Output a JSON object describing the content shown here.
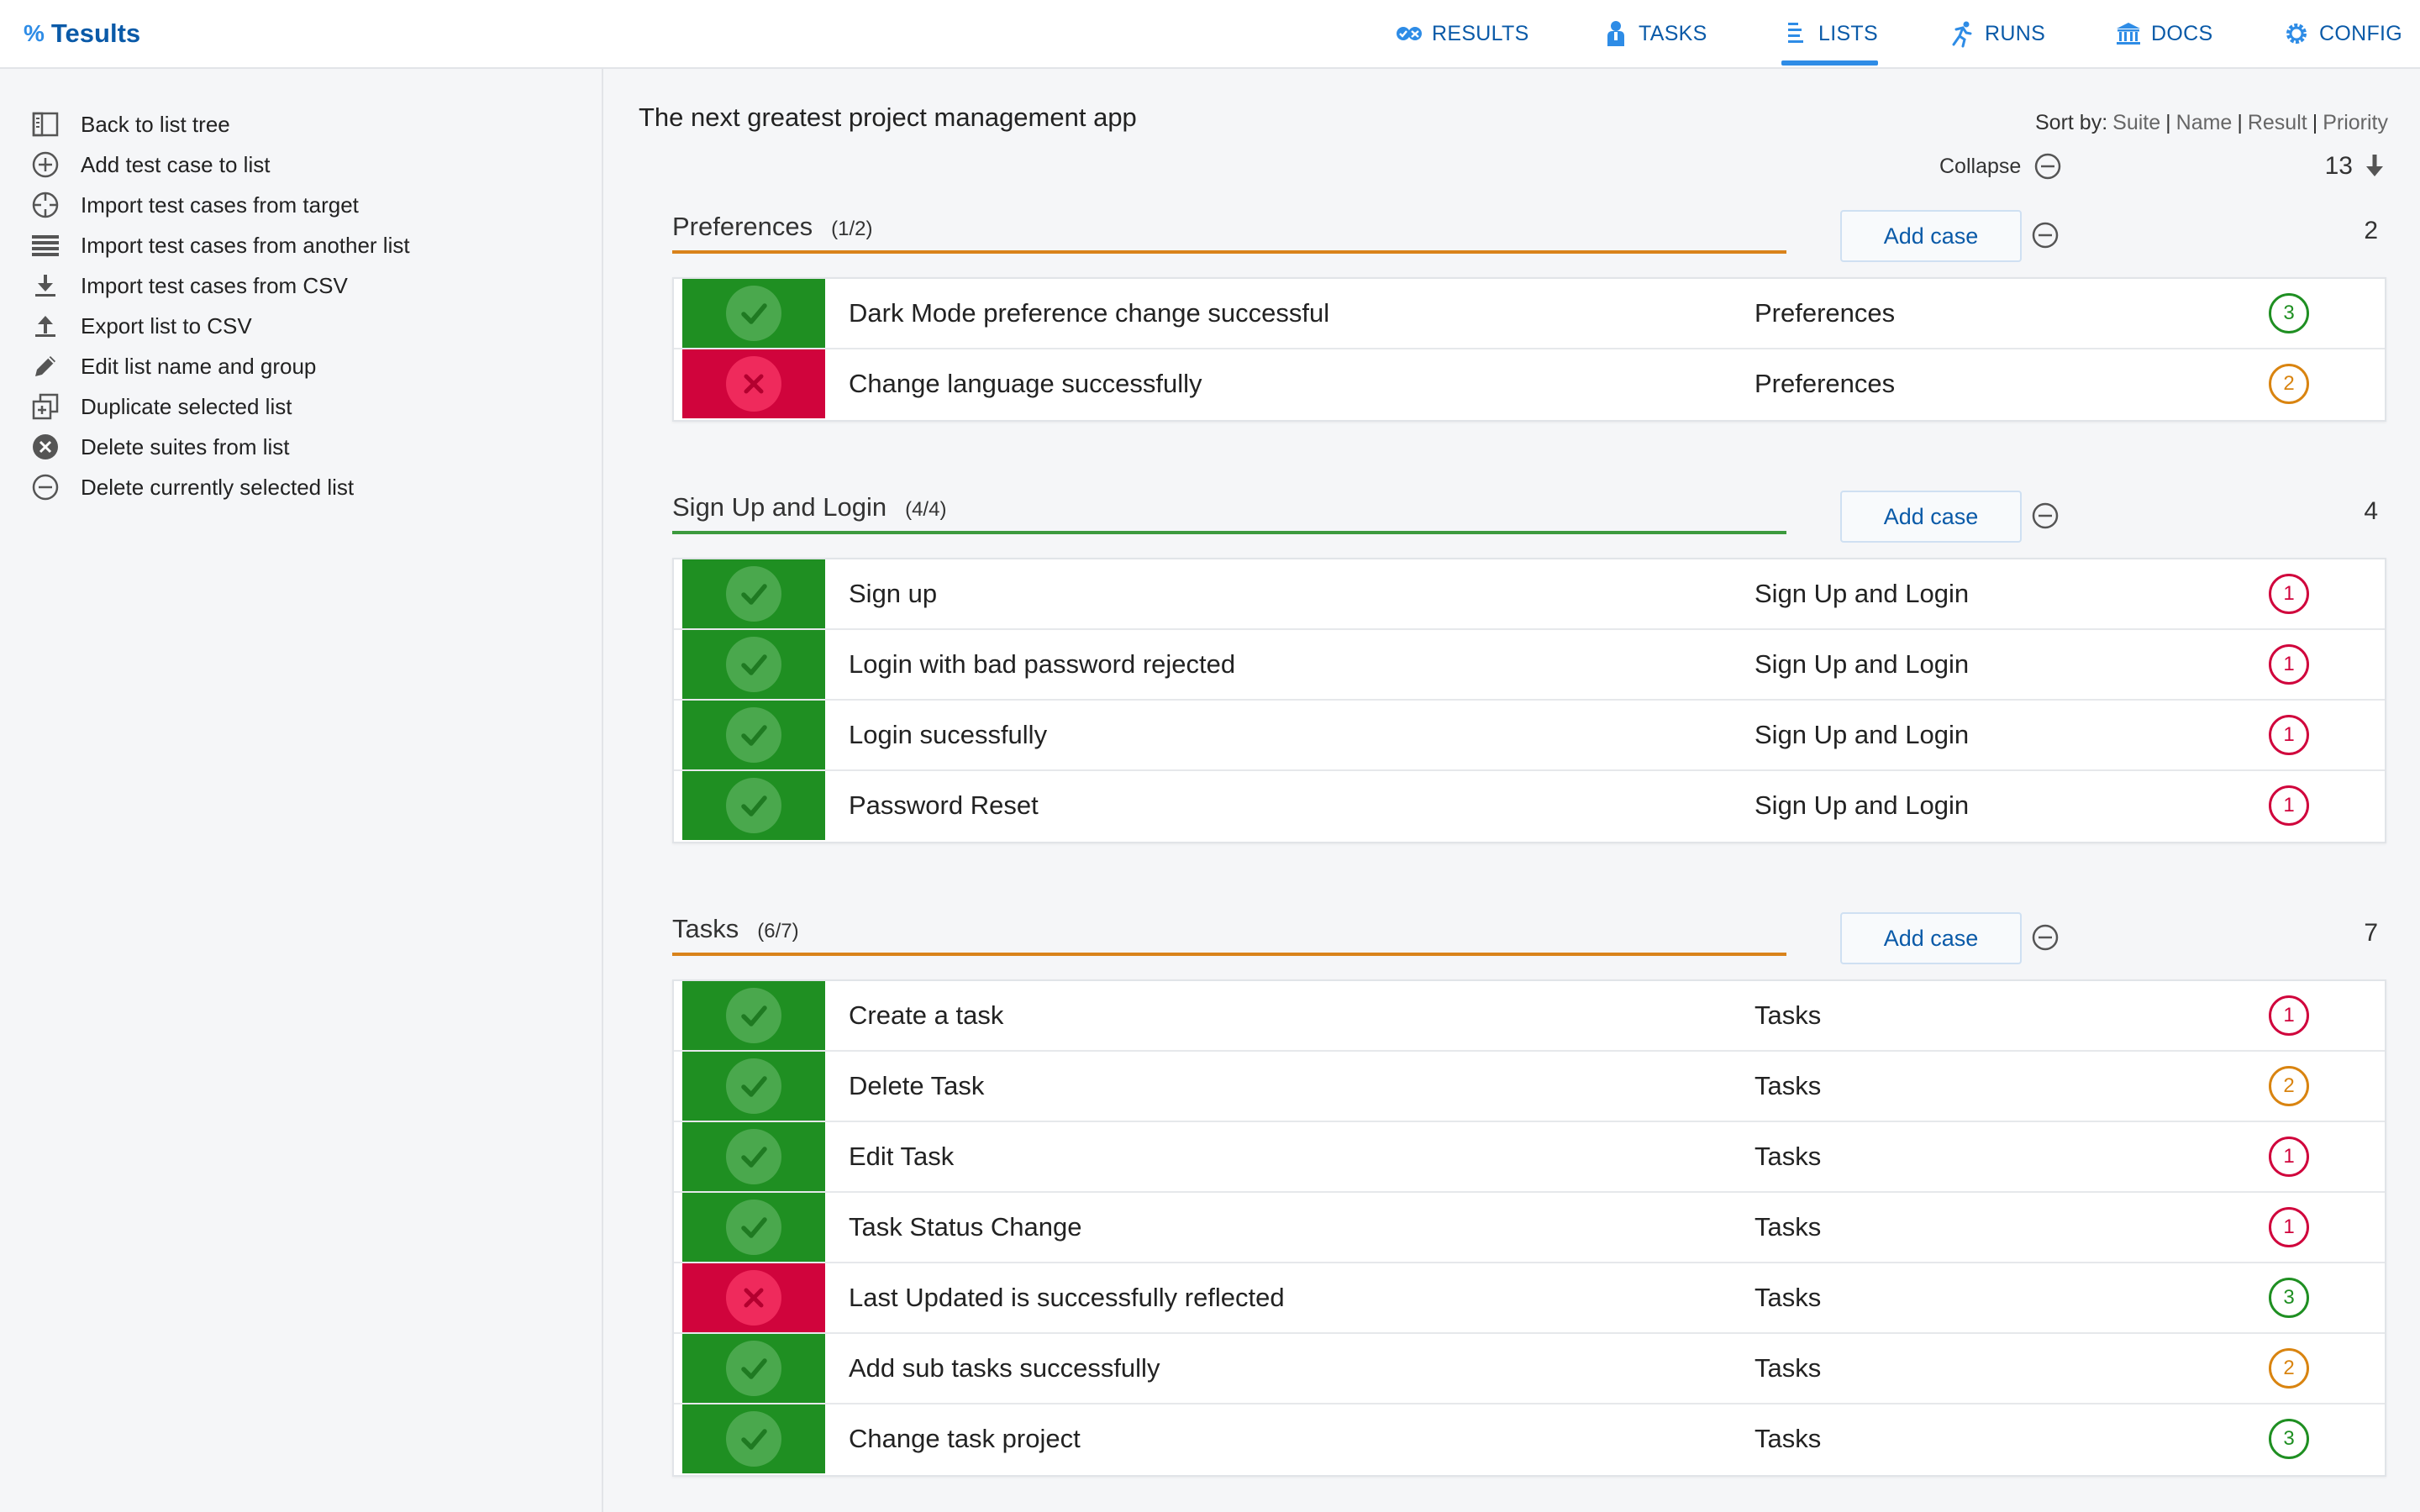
{
  "app": {
    "name": "Tesults",
    "logo_icon": "percent-logo-icon"
  },
  "nav": [
    {
      "label": "RESULTS",
      "icon": "results-icon"
    },
    {
      "label": "TASKS",
      "icon": "person-icon"
    },
    {
      "label": "LISTS",
      "icon": "list-icon",
      "active": true
    },
    {
      "label": "RUNS",
      "icon": "runner-icon"
    },
    {
      "label": "DOCS",
      "icon": "library-icon"
    },
    {
      "label": "CONFIG",
      "icon": "gear-icon"
    }
  ],
  "sidebar": {
    "items": [
      {
        "label": "Back to list tree",
        "icon": "sidebar-panel-icon"
      },
      {
        "label": "Add test case to list",
        "icon": "plus-circle-icon"
      },
      {
        "label": "Import test cases from target",
        "icon": "crosshair-icon"
      },
      {
        "label": "Import test cases from another list",
        "icon": "list-lines-icon"
      },
      {
        "label": "Import test cases from CSV",
        "icon": "download-icon"
      },
      {
        "label": "Export list to CSV",
        "icon": "upload-icon"
      },
      {
        "label": "Edit list name and group",
        "icon": "pencil-icon"
      },
      {
        "label": "Duplicate selected list",
        "icon": "duplicate-icon"
      },
      {
        "label": "Delete suites from list",
        "icon": "x-circle-icon"
      },
      {
        "label": "Delete currently selected list",
        "icon": "minus-circle-icon"
      }
    ]
  },
  "main": {
    "title": "The next greatest project management app",
    "sort": {
      "label": "Sort by:",
      "options": [
        "Suite",
        "Name",
        "Result",
        "Priority"
      ],
      "separator": "|"
    },
    "collapse_label": "Collapse",
    "total_count": "13",
    "add_case_label": "Add case",
    "colors": {
      "pass": "#1f8f22",
      "fail": "#d0043c",
      "accent": "#2e8ce6",
      "priority_2": "#d98410"
    },
    "suites": [
      {
        "name": "Preferences",
        "count": "(1/2)",
        "total": "2",
        "line_color": "#d9831b",
        "cases": [
          {
            "status": "pass",
            "name": "Dark Mode preference change successful",
            "suite": "Preferences",
            "priority": "3"
          },
          {
            "status": "fail",
            "name": "Change language successfully",
            "suite": "Preferences",
            "priority": "2"
          }
        ]
      },
      {
        "name": "Sign Up and Login",
        "count": "(4/4)",
        "total": "4",
        "line_color": "#3c9a3e",
        "cases": [
          {
            "status": "pass",
            "name": "Sign up",
            "suite": "Sign Up and Login",
            "priority": "1"
          },
          {
            "status": "pass",
            "name": "Login with bad password rejected",
            "suite": "Sign Up and Login",
            "priority": "1"
          },
          {
            "status": "pass",
            "name": "Login sucessfully",
            "suite": "Sign Up and Login",
            "priority": "1"
          },
          {
            "status": "pass",
            "name": "Password Reset",
            "suite": "Sign Up and Login",
            "priority": "1"
          }
        ]
      },
      {
        "name": "Tasks",
        "count": "(6/7)",
        "total": "7",
        "line_color": "#d9831b",
        "cases": [
          {
            "status": "pass",
            "name": "Create a task",
            "suite": "Tasks",
            "priority": "1"
          },
          {
            "status": "pass",
            "name": "Delete Task",
            "suite": "Tasks",
            "priority": "2"
          },
          {
            "status": "pass",
            "name": "Edit Task",
            "suite": "Tasks",
            "priority": "1"
          },
          {
            "status": "pass",
            "name": "Task Status Change",
            "suite": "Tasks",
            "priority": "1"
          },
          {
            "status": "fail",
            "name": "Last Updated is successfully reflected",
            "suite": "Tasks",
            "priority": "3"
          },
          {
            "status": "pass",
            "name": "Add sub tasks successfully",
            "suite": "Tasks",
            "priority": "2"
          },
          {
            "status": "pass",
            "name": "Change task project",
            "suite": "Tasks",
            "priority": "3"
          }
        ]
      }
    ]
  }
}
